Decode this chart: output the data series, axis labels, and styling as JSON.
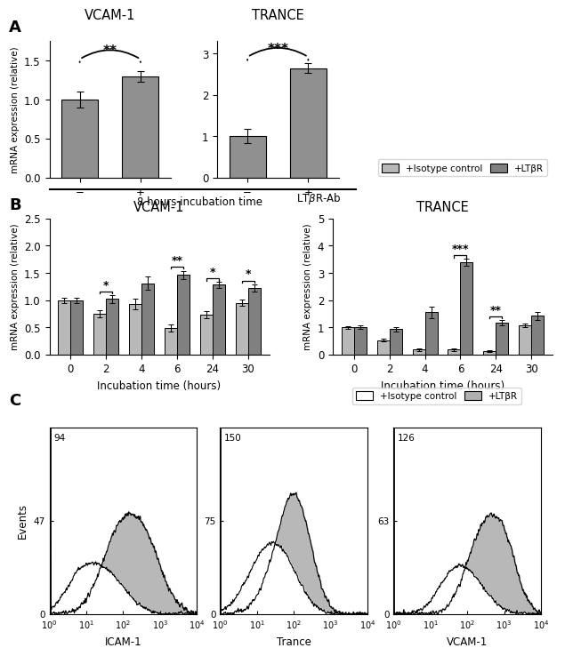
{
  "panel_A": {
    "vcam1": {
      "title": "VCAM-1",
      "bars": [
        1.0,
        1.3
      ],
      "errors": [
        0.1,
        0.07
      ],
      "xticks": [
        "−",
        "+"
      ],
      "ylim": [
        0,
        1.75
      ],
      "yticks": [
        0.0,
        0.5,
        1.0,
        1.5
      ],
      "sig": "**",
      "bar_color": "#909090"
    },
    "trance": {
      "title": "TRANCE",
      "bars": [
        1.0,
        2.65
      ],
      "errors": [
        0.18,
        0.12
      ],
      "xticks": [
        "−",
        "+"
      ],
      "ylim": [
        0,
        3.3
      ],
      "yticks": [
        0,
        1,
        2,
        3
      ],
      "sig": "***",
      "bar_color": "#909090"
    }
  },
  "panel_B": {
    "vcam1": {
      "title": "VCAM-1",
      "timepoints": [
        0,
        2,
        4,
        6,
        24,
        30
      ],
      "isotype": [
        1.0,
        0.75,
        0.93,
        0.49,
        0.73,
        0.95
      ],
      "ltbr": [
        1.0,
        1.02,
        1.31,
        1.46,
        1.28,
        1.22
      ],
      "iso_err": [
        0.05,
        0.07,
        0.1,
        0.06,
        0.06,
        0.06
      ],
      "ltbr_err": [
        0.05,
        0.07,
        0.12,
        0.07,
        0.06,
        0.07
      ],
      "ylim": [
        0,
        2.5
      ],
      "yticks": [
        0.0,
        0.5,
        1.0,
        1.5,
        2.0,
        2.5
      ],
      "sigs": [
        {
          "xi": 1,
          "y": 1.16,
          "label": "*"
        },
        {
          "xi": 3,
          "y": 1.62,
          "label": "**"
        },
        {
          "xi": 4,
          "y": 1.4,
          "label": "*"
        },
        {
          "xi": 5,
          "y": 1.36,
          "label": "*"
        }
      ]
    },
    "trance": {
      "title": "TRANCE",
      "timepoints": [
        0,
        2,
        4,
        6,
        24,
        30
      ],
      "isotype": [
        1.0,
        0.52,
        0.18,
        0.18,
        0.13,
        1.07
      ],
      "ltbr": [
        1.0,
        0.93,
        1.55,
        3.38,
        1.18,
        1.42
      ],
      "iso_err": [
        0.05,
        0.05,
        0.05,
        0.05,
        0.04,
        0.07
      ],
      "ltbr_err": [
        0.06,
        0.07,
        0.22,
        0.13,
        0.1,
        0.14
      ],
      "ylim": [
        0,
        5
      ],
      "yticks": [
        0,
        1,
        2,
        3,
        4,
        5
      ],
      "sigs": [
        {
          "xi": 3,
          "y": 3.65,
          "label": "***"
        },
        {
          "xi": 4,
          "y": 1.4,
          "label": "**"
        }
      ]
    }
  },
  "panel_C": {
    "icam1": {
      "title": "ICAM-1",
      "ymax": 94,
      "ymid": 47
    },
    "trance": {
      "title": "Trance",
      "ymax": 150,
      "ymid": 75
    },
    "vcam1": {
      "title": "VCAM-1",
      "ymax": 126,
      "ymid": 63
    }
  },
  "colors": {
    "iso_bar": "#b8b8b8",
    "ltbr_bar": "#808080",
    "bar_edge": "#000000",
    "ltbr_fill": "#b0b0b0"
  },
  "ylabel_A": "mRNA expression (relative)",
  "ylabel_B": "mRNA expression (relative)",
  "xlabel_A": "8 hours incubation time",
  "xlabel_B": "Incubation time (hours)",
  "legend_iso": "+Isotype control",
  "legend_ltbr": "+LTβR"
}
